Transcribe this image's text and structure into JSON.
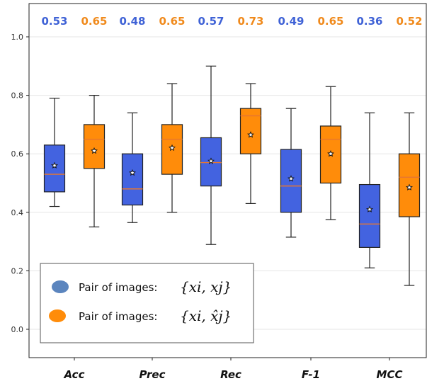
{
  "chart_data": {
    "type": "box",
    "categories": [
      "Acc",
      "Prec",
      "Rec",
      "F-1",
      "MCC"
    ],
    "ylim": [
      -0.1,
      1.1
    ],
    "yticks": [
      0.0,
      0.2,
      0.4,
      0.6,
      0.8,
      1.0
    ],
    "ytick_labels": [
      "0.0",
      "0.2",
      "0.4",
      "0.6",
      "0.8",
      "1.0"
    ],
    "grid": "horizontal",
    "legend_position": "bottom-left",
    "series": [
      {
        "name": "Pair of images:",
        "math_label": "{xi, xj}",
        "color": "#4363e0",
        "median_label_color": "#3f62d6",
        "boxes": [
          {
            "min": 0.42,
            "q1": 0.47,
            "median": 0.53,
            "q3": 0.63,
            "max": 0.79,
            "mean": 0.56,
            "label": "0.53"
          },
          {
            "min": 0.365,
            "q1": 0.425,
            "median": 0.48,
            "q3": 0.6,
            "max": 0.74,
            "mean": 0.535,
            "label": "0.48"
          },
          {
            "min": 0.29,
            "q1": 0.49,
            "median": 0.57,
            "q3": 0.655,
            "max": 0.9,
            "mean": 0.575,
            "label": "0.57"
          },
          {
            "min": 0.315,
            "q1": 0.4,
            "median": 0.49,
            "q3": 0.615,
            "max": 0.755,
            "mean": 0.515,
            "label": "0.49"
          },
          {
            "min": 0.21,
            "q1": 0.28,
            "median": 0.36,
            "q3": 0.495,
            "max": 0.74,
            "mean": 0.41,
            "label": "0.36"
          }
        ]
      },
      {
        "name": "Pair of images:",
        "math_label": "{xi, x̂j}",
        "color": "#ff8c0a",
        "median_label_color": "#f08a1c",
        "boxes": [
          {
            "min": 0.35,
            "q1": 0.55,
            "median": 0.65,
            "q3": 0.7,
            "max": 0.8,
            "mean": 0.61,
            "label": "0.65"
          },
          {
            "min": 0.4,
            "q1": 0.53,
            "median": 0.65,
            "q3": 0.7,
            "max": 0.84,
            "mean": 0.62,
            "label": "0.65"
          },
          {
            "min": 0.43,
            "q1": 0.6,
            "median": 0.73,
            "q3": 0.755,
            "max": 0.84,
            "mean": 0.665,
            "label": "0.73"
          },
          {
            "min": 0.375,
            "q1": 0.5,
            "median": 0.65,
            "q3": 0.695,
            "max": 0.83,
            "mean": 0.6,
            "label": "0.65"
          },
          {
            "min": 0.15,
            "q1": 0.385,
            "median": 0.52,
            "q3": 0.6,
            "max": 0.74,
            "mean": 0.485,
            "label": "0.52"
          }
        ]
      }
    ]
  }
}
